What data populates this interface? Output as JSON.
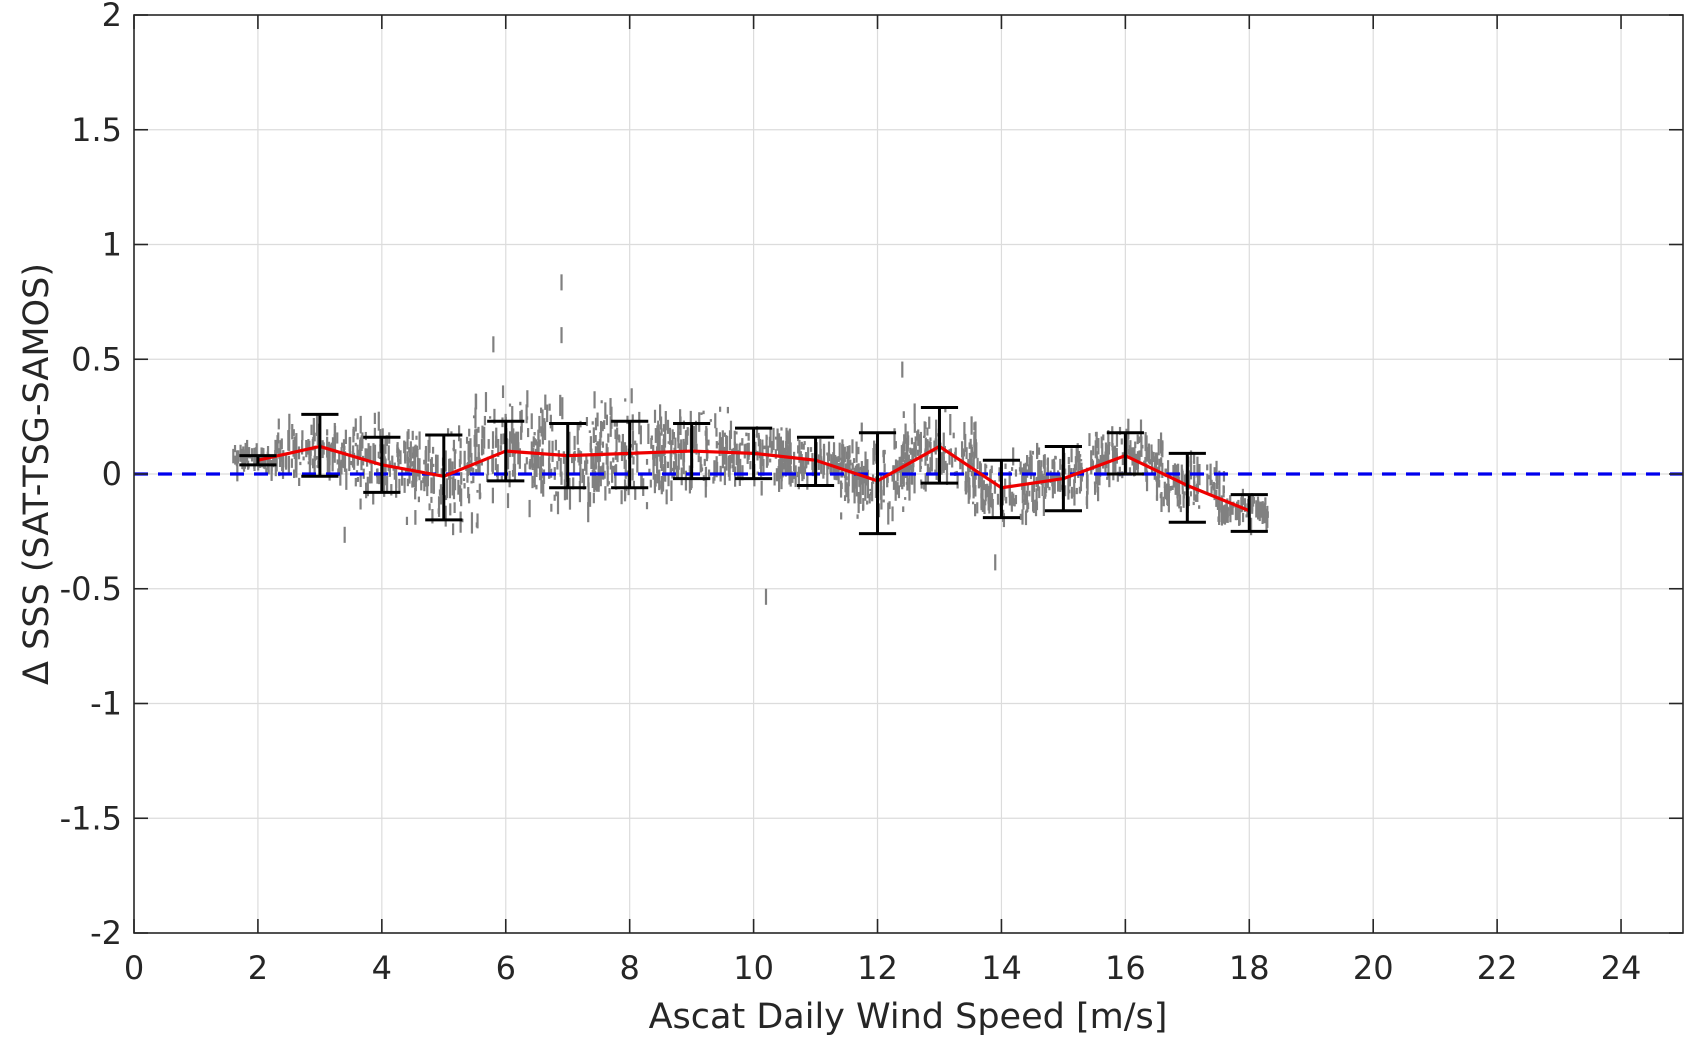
{
  "chart_data": {
    "type": "scatter",
    "title": "",
    "xlabel": "Ascat Daily Wind Speed [m/s]",
    "ylabel": "Δ SSS (SAT-TSG-SAMOS)",
    "xlim": [
      0,
      25
    ],
    "ylim": [
      -2,
      2
    ],
    "xticks": [
      0,
      2,
      4,
      6,
      8,
      10,
      12,
      14,
      16,
      18,
      20,
      22,
      24
    ],
    "yticks": [
      -2,
      -1.5,
      -1,
      -0.5,
      0,
      0.5,
      1,
      1.5,
      2
    ],
    "xtick_labels": [
      "0",
      "2",
      "4",
      "6",
      "8",
      "10",
      "12",
      "14",
      "16",
      "18",
      "20",
      "22",
      "24"
    ],
    "ytick_labels": [
      "-2",
      "-1.5",
      "-1",
      "-0.5",
      "0",
      "0.5",
      "1",
      "1.5",
      "2"
    ],
    "grid": true,
    "zero_line": {
      "y": 0,
      "color": "#0000ee",
      "style": "dashed"
    },
    "scatter_color": "#808080",
    "scatter_clusters": [
      {
        "x": [
          1.6,
          2.3
        ],
        "center": 0.06,
        "spread": 0.07
      },
      {
        "x": [
          2.3,
          3.7
        ],
        "center": 0.1,
        "spread": 0.18
      },
      {
        "x": [
          3.6,
          4.6
        ],
        "center": 0.05,
        "spread": 0.22
      },
      {
        "x": [
          4.4,
          5.6
        ],
        "center": 0.0,
        "spread": 0.3
      },
      {
        "x": [
          5.4,
          6.6
        ],
        "center": 0.1,
        "spread": 0.3
      },
      {
        "x": [
          6.4,
          7.6
        ],
        "center": 0.07,
        "spread": 0.33
      },
      {
        "x": [
          7.4,
          8.6
        ],
        "center": 0.08,
        "spread": 0.3
      },
      {
        "x": [
          8.4,
          9.6
        ],
        "center": 0.1,
        "spread": 0.22
      },
      {
        "x": [
          9.4,
          10.6
        ],
        "center": 0.09,
        "spread": 0.18
      },
      {
        "x": [
          10.4,
          11.6
        ],
        "center": 0.05,
        "spread": 0.14
      },
      {
        "x": [
          11.4,
          12.6
        ],
        "center": -0.02,
        "spread": 0.22
      },
      {
        "x": [
          12.4,
          13.6
        ],
        "center": 0.1,
        "spread": 0.22
      },
      {
        "x": [
          13.4,
          14.6
        ],
        "center": -0.06,
        "spread": 0.18
      },
      {
        "x": [
          14.4,
          15.6
        ],
        "center": -0.02,
        "spread": 0.18
      },
      {
        "x": [
          15.5,
          16.6
        ],
        "center": 0.08,
        "spread": 0.14
      },
      {
        "x": [
          16.5,
          17.6
        ],
        "center": -0.05,
        "spread": 0.16
      },
      {
        "x": [
          17.5,
          18.3
        ],
        "center": -0.16,
        "spread": 0.08
      }
    ],
    "scatter_outliers": [
      {
        "x": 6.9,
        "y": 0.85
      },
      {
        "x": 5.8,
        "y": 0.58
      },
      {
        "x": 6.9,
        "y": 0.62
      },
      {
        "x": 12.4,
        "y": 0.47
      },
      {
        "x": 10.2,
        "y": -0.52
      },
      {
        "x": 3.4,
        "y": -0.25
      },
      {
        "x": 13.9,
        "y": -0.37
      }
    ],
    "mean_series": {
      "color": "#ee0000",
      "x": [
        2,
        3,
        4,
        5,
        6,
        7,
        8,
        9,
        10,
        11,
        12,
        13,
        14,
        15,
        16,
        17,
        18
      ],
      "y": [
        0.06,
        0.12,
        0.04,
        -0.01,
        0.1,
        0.08,
        0.09,
        0.1,
        0.09,
        0.06,
        -0.03,
        0.12,
        -0.06,
        -0.02,
        0.08,
        -0.05,
        -0.16
      ]
    },
    "error_bars": {
      "color": "#000000",
      "x": [
        2,
        3,
        4,
        5,
        6,
        7,
        8,
        9,
        10,
        11,
        12,
        13,
        14,
        15,
        16,
        17,
        18
      ],
      "lower": [
        0.04,
        -0.01,
        -0.08,
        -0.2,
        -0.03,
        -0.06,
        -0.06,
        -0.02,
        -0.02,
        -0.05,
        -0.26,
        -0.04,
        -0.19,
        -0.16,
        0.0,
        -0.21,
        -0.25
      ],
      "upper": [
        0.08,
        0.26,
        0.16,
        0.17,
        0.23,
        0.22,
        0.23,
        0.22,
        0.2,
        0.16,
        0.18,
        0.29,
        0.06,
        0.12,
        0.18,
        0.09,
        -0.09
      ]
    }
  }
}
